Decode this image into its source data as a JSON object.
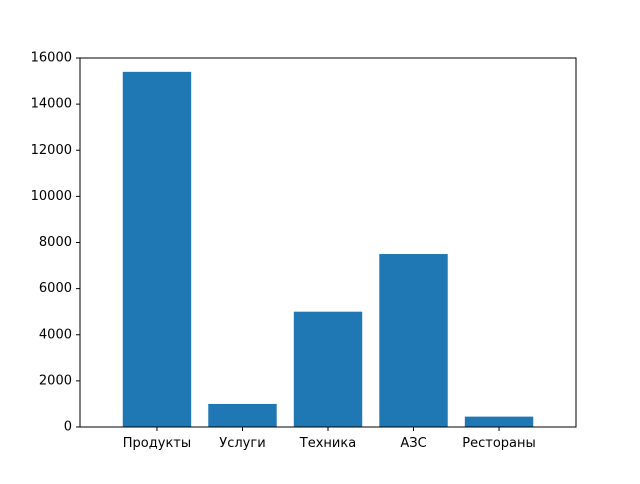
{
  "chart_data": {
    "type": "bar",
    "categories": [
      "Продукты",
      "Услуги",
      "Техника",
      "АЗС",
      "Рестораны"
    ],
    "values": [
      15400,
      1000,
      5000,
      7500,
      450
    ],
    "title": "",
    "xlabel": "",
    "ylabel": "",
    "ylim": [
      0,
      16000
    ],
    "yticks": [
      0,
      2000,
      4000,
      6000,
      8000,
      10000,
      12000,
      14000,
      16000
    ],
    "grid": false,
    "bar_color": "#1f77b4"
  }
}
